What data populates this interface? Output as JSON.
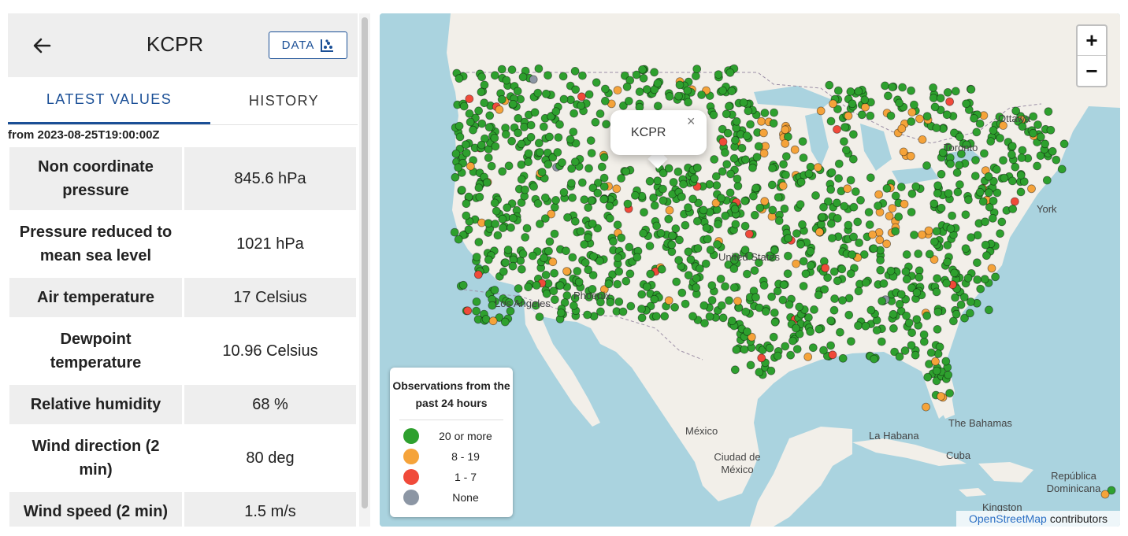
{
  "panel": {
    "station": "KCPR",
    "data_button": "DATA",
    "tabs": [
      "LATEST VALUES",
      "HISTORY"
    ],
    "from_text": "from 2023-08-25T19:00:00Z",
    "rows": [
      {
        "label": "Non coordinate pressure",
        "value": "845.6 hPa"
      },
      {
        "label": "Pressure reduced to mean sea level",
        "value": "1021 hPa"
      },
      {
        "label": "Air temperature",
        "value": "17 Celsius"
      },
      {
        "label": "Dewpoint temperature",
        "value": "10.96 Celsius"
      },
      {
        "label": "Relative humidity",
        "value": "68 %"
      },
      {
        "label": "Wind direction (2 min)",
        "value": "80 deg"
      },
      {
        "label": "Wind speed (2 min)",
        "value": "1.5 m/s"
      }
    ]
  },
  "map": {
    "popup_label": "KCPR",
    "popup_close": "×",
    "zoom_in": "+",
    "zoom_out": "−",
    "places": [
      "Ottawa",
      "Toronto",
      "York",
      "México",
      "Ciudad de México",
      "La Habana",
      "Cuba",
      "The Bahamas",
      "República Dominicana",
      "Kingston",
      "Phoenix",
      "Los Angeles",
      "United States"
    ],
    "legend": {
      "title": "Observations from the past 24 hours",
      "items": [
        {
          "label": "20 or more",
          "color": "#2ea02e"
        },
        {
          "label": "8 - 19",
          "color": "#f5a33a"
        },
        {
          "label": "1 - 7",
          "color": "#f04a3a"
        },
        {
          "label": "None",
          "color": "#8c96a4"
        }
      ]
    },
    "attribution": {
      "link": "OpenStreetMap",
      "text": "contributors"
    },
    "colors": {
      "green": "#2ea02e",
      "orange": "#f5a33a",
      "red": "#f04a3a",
      "gray": "#8c96a4",
      "water": "#aad3df",
      "land": "#f2efe9"
    }
  }
}
